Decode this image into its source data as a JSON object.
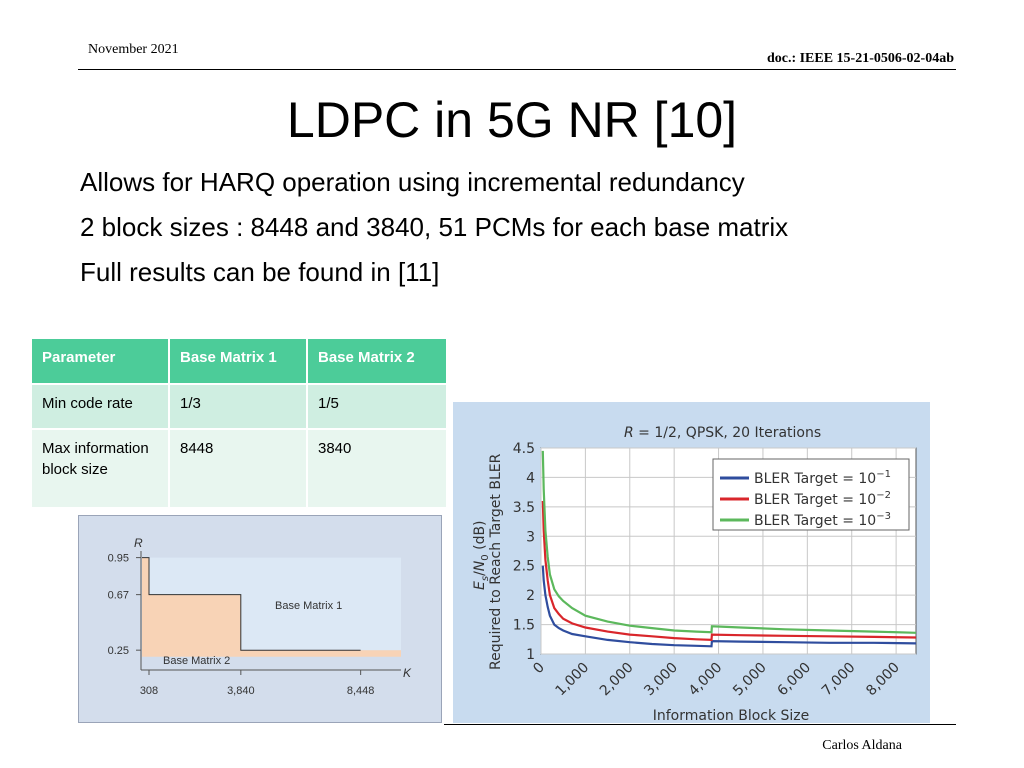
{
  "header": {
    "date": "November 2021",
    "doc_id": "doc.: IEEE 15-21-0506-02-04ab"
  },
  "title": "LDPC in 5G NR [10]",
  "bullets": [
    "Allows for HARQ operation using incremental redundancy",
    "2 block sizes : 8448 and 3840, 51 PCMs for each base matrix",
    "Full results can be found in [11]"
  ],
  "table": {
    "headers": [
      "Parameter",
      "Base Matrix 1",
      "Base Matrix 2"
    ],
    "rows": [
      [
        "Min code rate",
        "1/3",
        "1/5"
      ],
      [
        "Max information block size",
        "8448",
        "3840"
      ]
    ],
    "colors": {
      "header_bg": "#4ccc99",
      "row1_bg": "#cfeee1",
      "row2_bg": "#e8f6ef"
    }
  },
  "chart_data": [
    {
      "type": "area",
      "title": "",
      "ylabel": "R",
      "xlabel": "K",
      "y_ticks": [
        "0.95",
        "0.67",
        "0.25"
      ],
      "x_ticks": [
        "308",
        "3,840",
        "8,448"
      ],
      "regions": [
        {
          "name": "Base Matrix 1",
          "label": "Base Matrix 1",
          "color": "#dce8f5",
          "k_range": [
            308,
            8448
          ],
          "r_range": [
            0.33,
            0.95
          ]
        },
        {
          "name": "Base Matrix 2",
          "label": "Base Matrix 2",
          "color": "#f8d3b6",
          "k_range": [
            0,
            3840
          ],
          "r_range": [
            0.2,
            0.67
          ]
        }
      ],
      "boundary": [
        [
          40,
          0.95
        ],
        [
          308,
          0.95
        ],
        [
          308,
          0.67
        ],
        [
          3840,
          0.67
        ],
        [
          3840,
          0.25
        ],
        [
          8448,
          0.25
        ]
      ]
    },
    {
      "type": "line",
      "title": "R = 1/2, QPSK, 20 Iterations",
      "title_parts": {
        "var": "R",
        "rest": " = 1/2, QPSK, 20 Iterations"
      },
      "xlabel": "Information Block Size",
      "ylabel": "Es/N0 (dB) Required to Reach Target BLER",
      "ylabel_lines": [
        "Required to Reach Target BLER"
      ],
      "ylabel_math": {
        "e": "E",
        "s": "s",
        "slash": "/",
        "n": "N",
        "zero": "0",
        "db": " (dB)"
      },
      "xlim": [
        0,
        8448
      ],
      "ylim": [
        1,
        4.5
      ],
      "x_ticks": [
        "0",
        "1,000",
        "2,000",
        "3,000",
        "4,000",
        "5,000",
        "6,000",
        "7,000",
        "8,000"
      ],
      "y_ticks": [
        "1",
        "1.5",
        "2",
        "2.5",
        "3",
        "3.5",
        "4",
        "4.5"
      ],
      "grid": true,
      "legend_position": "top-right",
      "legend_labels": [
        {
          "base": "BLER Target = 10",
          "exp": "−1"
        },
        {
          "base": "BLER Target = 10",
          "exp": "−2"
        },
        {
          "base": "BLER Target = 10",
          "exp": "−3"
        }
      ],
      "series": [
        {
          "name": "BLER Target = 10^-1",
          "color": "#2f4d9e",
          "x": [
            40,
            60,
            100,
            150,
            200,
            300,
            400,
            500,
            700,
            1000,
            1500,
            2000,
            2500,
            3000,
            3500,
            3840,
            3850,
            4500,
            5500,
            6500,
            7500,
            8448
          ],
          "y": [
            2.5,
            2.25,
            2.0,
            1.8,
            1.65,
            1.5,
            1.44,
            1.4,
            1.34,
            1.3,
            1.24,
            1.2,
            1.17,
            1.15,
            1.14,
            1.13,
            1.22,
            1.21,
            1.2,
            1.19,
            1.19,
            1.18
          ]
        },
        {
          "name": "BLER Target = 10^-2",
          "color": "#d9262b",
          "x": [
            40,
            60,
            100,
            150,
            200,
            300,
            400,
            500,
            700,
            1000,
            1500,
            2000,
            2500,
            3000,
            3500,
            3840,
            3850,
            4500,
            5500,
            6500,
            7500,
            8448
          ],
          "y": [
            3.6,
            3.1,
            2.6,
            2.25,
            2.0,
            1.78,
            1.68,
            1.6,
            1.52,
            1.45,
            1.38,
            1.33,
            1.3,
            1.27,
            1.25,
            1.24,
            1.33,
            1.32,
            1.31,
            1.3,
            1.29,
            1.28
          ]
        },
        {
          "name": "BLER Target = 10^-3",
          "color": "#5cb85c",
          "x": [
            40,
            60,
            100,
            150,
            200,
            300,
            400,
            500,
            700,
            1000,
            1500,
            2000,
            2500,
            3000,
            3500,
            3840,
            3850,
            4500,
            5500,
            6500,
            7500,
            8448
          ],
          "y": [
            4.45,
            3.8,
            3.1,
            2.65,
            2.35,
            2.1,
            1.98,
            1.9,
            1.78,
            1.65,
            1.55,
            1.48,
            1.44,
            1.4,
            1.38,
            1.37,
            1.47,
            1.45,
            1.42,
            1.4,
            1.38,
            1.36
          ]
        }
      ]
    }
  ],
  "footer": {
    "author": "Carlos Aldana"
  }
}
